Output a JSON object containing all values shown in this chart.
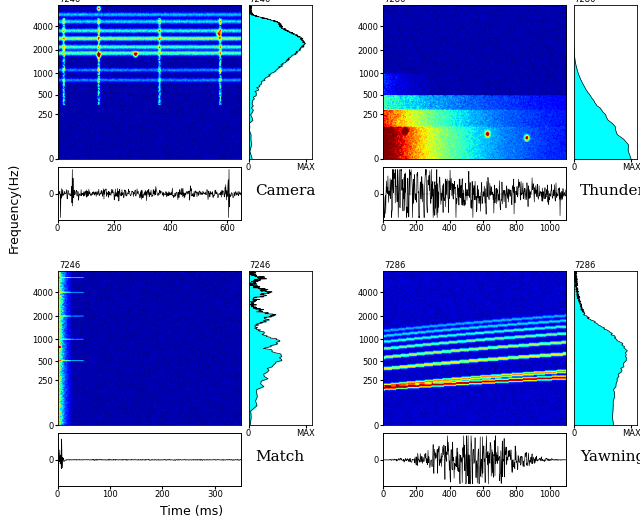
{
  "panels": [
    {
      "label": "Camera",
      "style": "camera",
      "xmax": 650,
      "ymax": 7246,
      "xticks": [
        0,
        200,
        400,
        600
      ],
      "yticks": [
        0,
        250,
        500,
        1000,
        2000,
        4000
      ],
      "profile": "camera",
      "row": 0,
      "col": 0
    },
    {
      "label": "Thunder",
      "style": "thunder",
      "xmax": 1100,
      "ymax": 7286,
      "xticks": [
        0,
        200,
        400,
        600,
        800,
        1000
      ],
      "yticks": [
        0,
        250,
        500,
        1000,
        2000,
        4000
      ],
      "profile": "thunder",
      "row": 0,
      "col": 1
    },
    {
      "label": "Match",
      "style": "match",
      "xmax": 350,
      "ymax": 7246,
      "xticks": [
        0,
        100,
        200,
        300
      ],
      "yticks": [
        0,
        250,
        500,
        1000,
        2000,
        4000
      ],
      "profile": "match",
      "row": 1,
      "col": 0
    },
    {
      "label": "Yawning",
      "style": "yawning",
      "xmax": 1100,
      "ymax": 7286,
      "xticks": [
        0,
        200,
        400,
        600,
        800,
        1000
      ],
      "yticks": [
        0,
        250,
        500,
        1000,
        2000,
        4000
      ],
      "profile": "yawning",
      "row": 1,
      "col": 1
    }
  ],
  "ylabel": "Frequency(Hz)",
  "xlabel": "Time (ms)",
  "profile_color": "#00FFFF",
  "label_fontsize": 11,
  "tick_fontsize": 6,
  "axis_label_fontsize": 9,
  "ymax_global": 7246
}
